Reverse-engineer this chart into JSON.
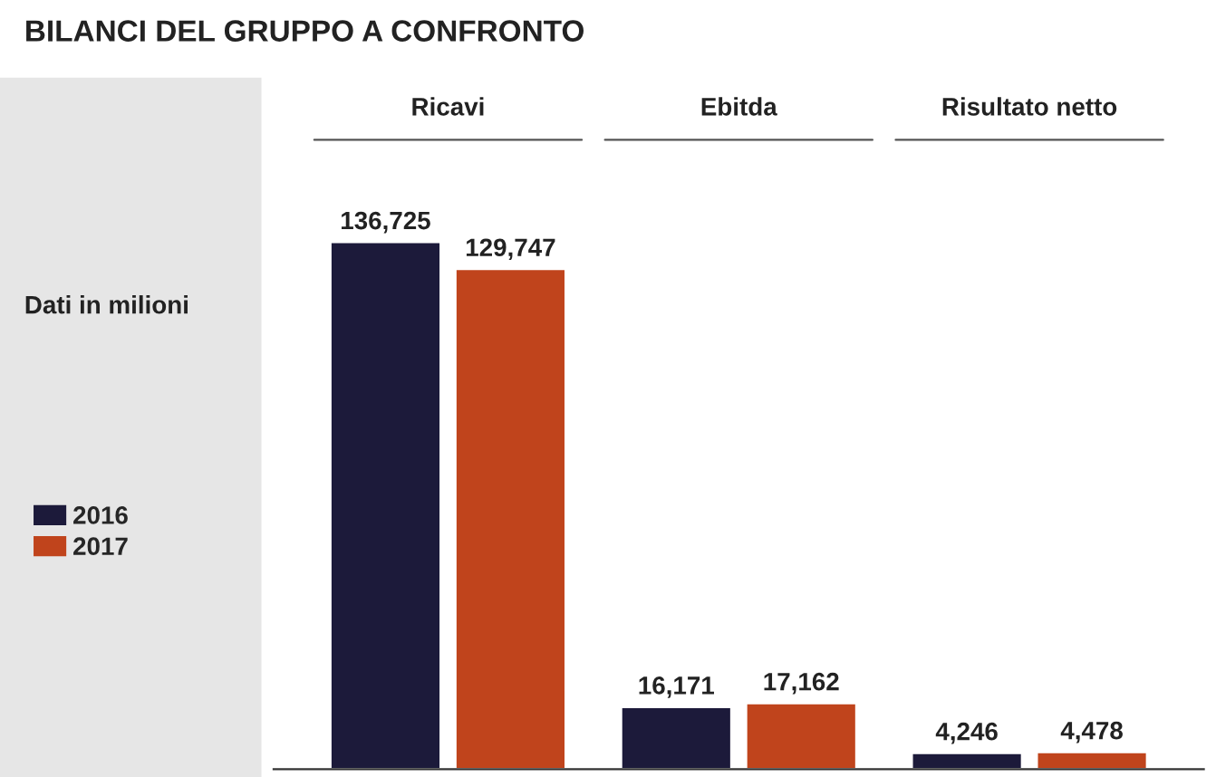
{
  "chart_data": {
    "type": "bar",
    "title": "BILANCI DEL GRUPPO A CONFRONTO",
    "subtitle": "Dati in milioni",
    "categories": [
      "Ricavi",
      "Ebitda",
      "Risultato netto"
    ],
    "series": [
      {
        "name": "2016",
        "color": "#1c1a3a",
        "values": [
          136725,
          16171,
          4246
        ],
        "value_labels": [
          "136,725",
          "16,171",
          "4,246"
        ]
      },
      {
        "name": "2017",
        "color": "#c0441c",
        "values": [
          129747,
          17162,
          4478
        ],
        "value_labels": [
          "129,747",
          "17,162",
          "4,478"
        ]
      }
    ],
    "legend": "left"
  }
}
